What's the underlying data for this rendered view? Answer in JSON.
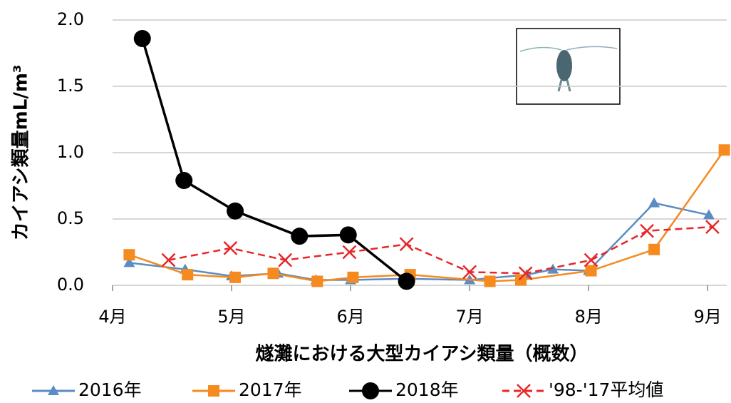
{
  "chart_data": {
    "type": "line",
    "y_label": "カイアシ類量mL/m³",
    "x_label": "燧灘における大型カイアシ類量（概数）",
    "xlim": [
      4,
      9.16
    ],
    "xticks": [
      {
        "value": 4,
        "label": "4月"
      },
      {
        "value": 5,
        "label": "5月"
      },
      {
        "value": 6,
        "label": "6月"
      },
      {
        "value": 7,
        "label": "7月"
      },
      {
        "value": 8,
        "label": "8月"
      },
      {
        "value": 9,
        "label": "9月"
      }
    ],
    "ylim": [
      0,
      2
    ],
    "yticks": [
      {
        "value": 0,
        "label": "0.0"
      },
      {
        "value": 0.5,
        "label": "0.5"
      },
      {
        "value": 1,
        "label": "1.0"
      },
      {
        "value": 1.5,
        "label": "1.5"
      },
      {
        "value": 2,
        "label": "2.0"
      }
    ],
    "grid": true,
    "legend": "bottom",
    "series": [
      {
        "name": "2016年",
        "color": "#5b8cc4",
        "marker": "triangle",
        "dash": false,
        "x": [
          4.14,
          4.61,
          5.0,
          5.39,
          5.71,
          6.0,
          6.47,
          7.0,
          7.48,
          7.7,
          8.0,
          8.55,
          9.01
        ],
        "values": [
          0.17,
          0.12,
          0.07,
          0.09,
          0.04,
          0.04,
          0.05,
          0.04,
          0.08,
          0.12,
          0.11,
          0.62,
          0.53
        ]
      },
      {
        "name": "2017年",
        "color": "#f58a1f",
        "marker": "square",
        "dash": false,
        "x": [
          4.14,
          4.63,
          5.03,
          5.35,
          5.72,
          6.02,
          6.5,
          7.17,
          7.43,
          8.02,
          8.55,
          9.14
        ],
        "values": [
          0.23,
          0.08,
          0.06,
          0.09,
          0.03,
          0.06,
          0.08,
          0.03,
          0.04,
          0.11,
          0.27,
          1.02
        ]
      },
      {
        "name": "2018年",
        "color": "#000000",
        "marker": "circle",
        "dash": false,
        "x": [
          4.25,
          4.6,
          5.03,
          5.57,
          5.98,
          6.47
        ],
        "values": [
          1.86,
          0.79,
          0.56,
          0.37,
          0.38,
          0.03
        ]
      },
      {
        "name": "'98-'17平均値",
        "color": "#e8262a",
        "marker": "x",
        "dash": true,
        "x": [
          4.47,
          4.99,
          5.45,
          5.99,
          6.47,
          7.0,
          7.47,
          8.02,
          8.49,
          9.04
        ],
        "values": [
          0.19,
          0.28,
          0.19,
          0.25,
          0.31,
          0.1,
          0.09,
          0.19,
          0.41,
          0.44
        ]
      }
    ]
  }
}
